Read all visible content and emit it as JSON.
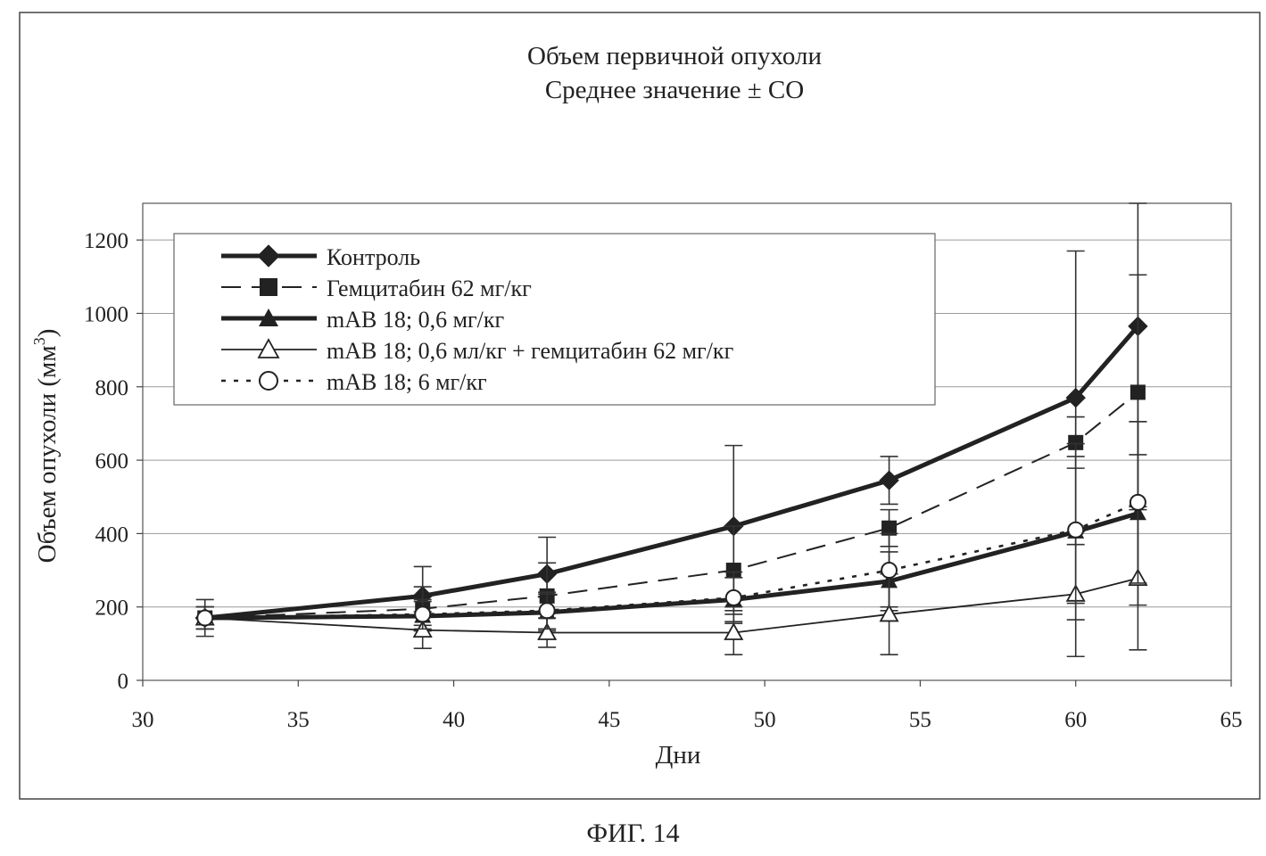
{
  "figure_caption": "ФИГ. 14",
  "chart_data": {
    "type": "line",
    "title": "Объем первичной опухоли",
    "subtitle": "Среднее значение ± СО",
    "xlabel": "Дни",
    "ylabel": "Объем опухоли (мм",
    "ylabel_sup": "3",
    "ylabel_close": ")",
    "xlim": [
      30,
      65
    ],
    "ylim": [
      0,
      1300
    ],
    "xticks": [
      30,
      35,
      40,
      45,
      50,
      55,
      60,
      65
    ],
    "yticks": [
      0,
      200,
      400,
      600,
      800,
      1000,
      1200
    ],
    "grid": "horizontal",
    "legend_position": "top-left",
    "series": [
      {
        "name": "Контроль",
        "marker": "diamond-filled",
        "line": "thick-solid",
        "x": [
          32,
          39,
          43,
          49,
          54,
          60,
          62
        ],
        "y": [
          170,
          230,
          290,
          420,
          545,
          770,
          965
        ],
        "err": [
          50,
          80,
          100,
          220,
          65,
          400,
          350
        ]
      },
      {
        "name": "Гемцитабин 62 мг/кг",
        "marker": "square-filled",
        "line": "dashed",
        "x": [
          32,
          39,
          43,
          49,
          54,
          60,
          62
        ],
        "y": [
          170,
          195,
          230,
          300,
          415,
          648,
          785
        ],
        "err": [
          30,
          60,
          90,
          120,
          50,
          70,
          320
        ]
      },
      {
        "name": "mAB 18; 0,6 мг/кг",
        "marker": "triangle-filled",
        "line": "thick-solid",
        "x": [
          32,
          39,
          43,
          49,
          54,
          60,
          62
        ],
        "y": [
          170,
          175,
          185,
          220,
          270,
          405,
          455
        ],
        "err": [
          30,
          40,
          50,
          60,
          80,
          240,
          250
        ]
      },
      {
        "name": "mAB 18; 0,6 мл/кг + гемцитабин 62 мг/кг",
        "marker": "triangle-open",
        "line": "thin-solid",
        "x": [
          32,
          39,
          43,
          49,
          54,
          60,
          62
        ],
        "y": [
          170,
          137,
          130,
          130,
          180,
          235,
          278
        ],
        "err": [
          30,
          50,
          40,
          60,
          110,
          170,
          195
        ]
      },
      {
        "name": "mAB 18; 6 мг/кг",
        "marker": "circle-open",
        "line": "dotted",
        "x": [
          32,
          39,
          43,
          49,
          54,
          60,
          62
        ],
        "y": [
          170,
          180,
          190,
          225,
          300,
          410,
          485
        ],
        "err": [
          30,
          40,
          50,
          70,
          100,
          200,
          220
        ]
      }
    ]
  }
}
